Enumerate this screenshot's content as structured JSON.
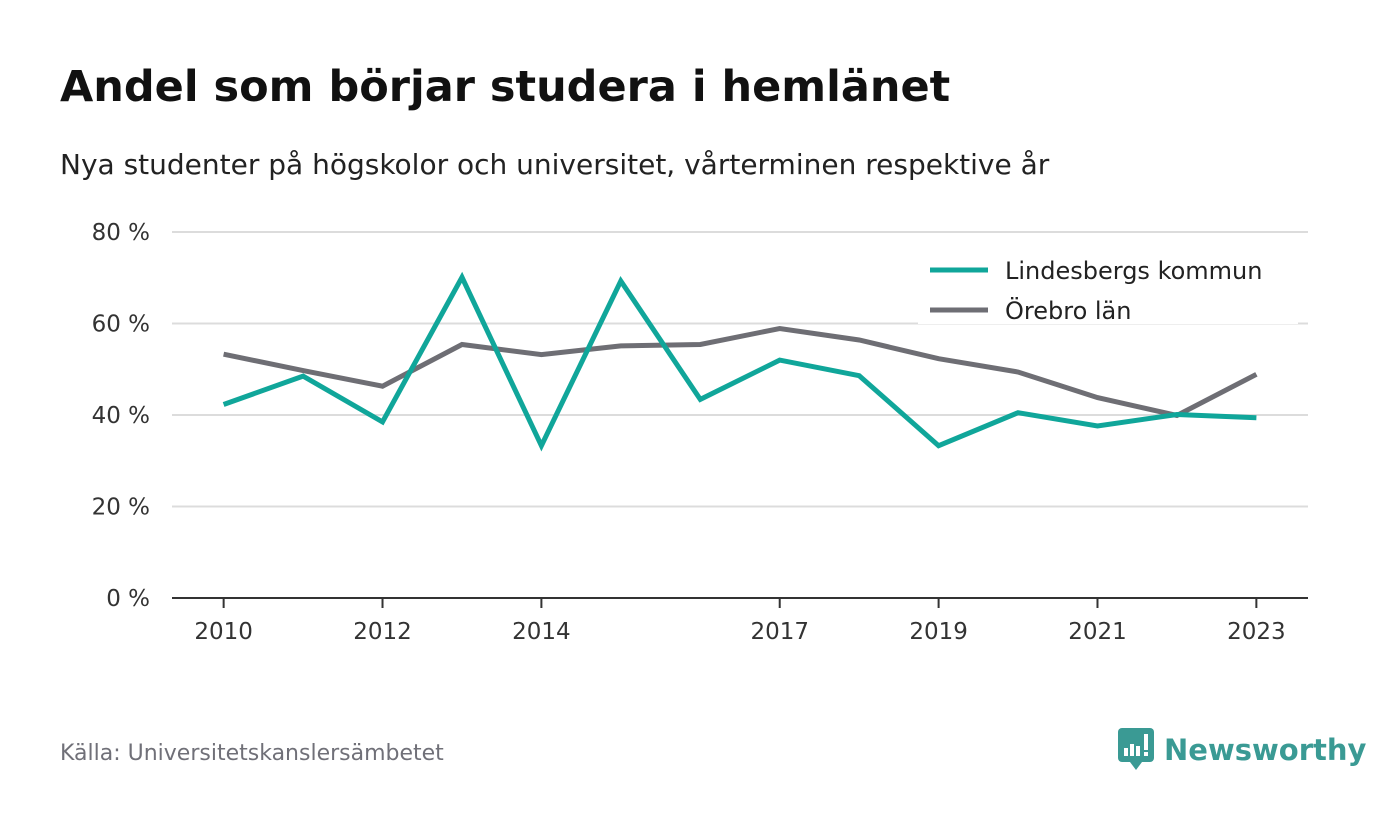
{
  "header": {
    "title": "Andel som börjar studera i hemlänet",
    "subtitle": "Nya studenter på högskolor och universitet, vårterminen respektive år"
  },
  "footer": {
    "source": "Källa: Universitetskanslersämbetet",
    "brand": "Newsworthy",
    "brand_icon": "newsworthy-logo-icon",
    "brand_color": "#3a9a94"
  },
  "chart_data": {
    "type": "line",
    "title": "Andel som börjar studera i hemlänet",
    "subtitle": "Nya studenter på högskolor och universitet, vårterminen respektive år",
    "x": [
      2010,
      2011,
      2012,
      2013,
      2014,
      2015,
      2016,
      2017,
      2018,
      2019,
      2020,
      2021,
      2022,
      2023
    ],
    "x_tick_values": [
      2010,
      2012,
      2014,
      2017,
      2019,
      2021,
      2023
    ],
    "x_tick_labels": [
      "2010",
      "2012",
      "2014",
      "2017",
      "2019",
      "2021",
      "2023"
    ],
    "y_ticks": [
      0,
      20,
      40,
      60,
      80
    ],
    "y_tick_labels": [
      "0 %",
      "20 %",
      "40 %",
      "60 %",
      "80 %"
    ],
    "ylim": [
      0,
      80
    ],
    "grid": true,
    "legend_position": "top-right",
    "series": [
      {
        "name": "Lindesbergs kommun",
        "color": "#10a69a",
        "values": [
          42.3,
          48.5,
          38.5,
          70.1,
          33.3,
          69.3,
          43.4,
          52.0,
          48.6,
          33.3,
          40.5,
          37.6,
          40.1,
          39.4
        ]
      },
      {
        "name": "Örebro län",
        "color": "#6e6e74",
        "values": [
          53.3,
          49.7,
          46.3,
          55.4,
          53.2,
          55.1,
          55.4,
          58.9,
          56.4,
          52.3,
          49.4,
          43.8,
          39.9,
          48.9
        ]
      }
    ]
  }
}
